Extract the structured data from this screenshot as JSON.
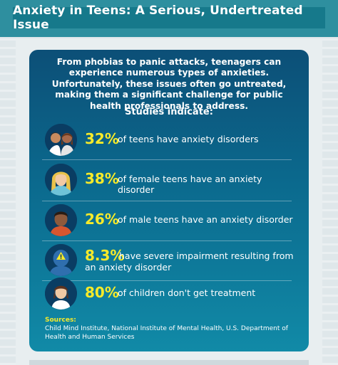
{
  "title": "Anxiety in Teens: A Serious, Undertreated Issue",
  "intro": "From phobias to panic attacks, teenagers can experience numerous types of anxieties. Unfortunately, these issues often go untreated, making them a significant challenge for public health professionals to address.",
  "studies_heading": "Studies indicate:",
  "stats": [
    {
      "percent": "32%",
      "text": "of teens have anxiety disorders",
      "icon": "teen-couple-icon"
    },
    {
      "percent": "38%",
      "text": "of female teens have an anxiety disorder",
      "icon": "female-teen-icon"
    },
    {
      "percent": "26%",
      "text": "of male teens have an anxiety disorder",
      "icon": "male-teen-icon"
    },
    {
      "percent": "8.3%",
      "text_line1": "have severe impairment resulting from",
      "text_line2": "an anxiety disorder",
      "icon": "warning-head-icon"
    },
    {
      "percent": "80%",
      "text": "of children don't get treatment",
      "icon": "child-icon"
    }
  ],
  "sources_label": "Sources:",
  "sources_text": "Child Mind Institute, National Institute of Mental Health, U.S. Department of Health and Human Services",
  "colors": {
    "header": "#2e8f9f",
    "card_top": "#0c4f77",
    "card_bottom": "#118aa7",
    "accent_yellow": "#f7ea2a"
  }
}
